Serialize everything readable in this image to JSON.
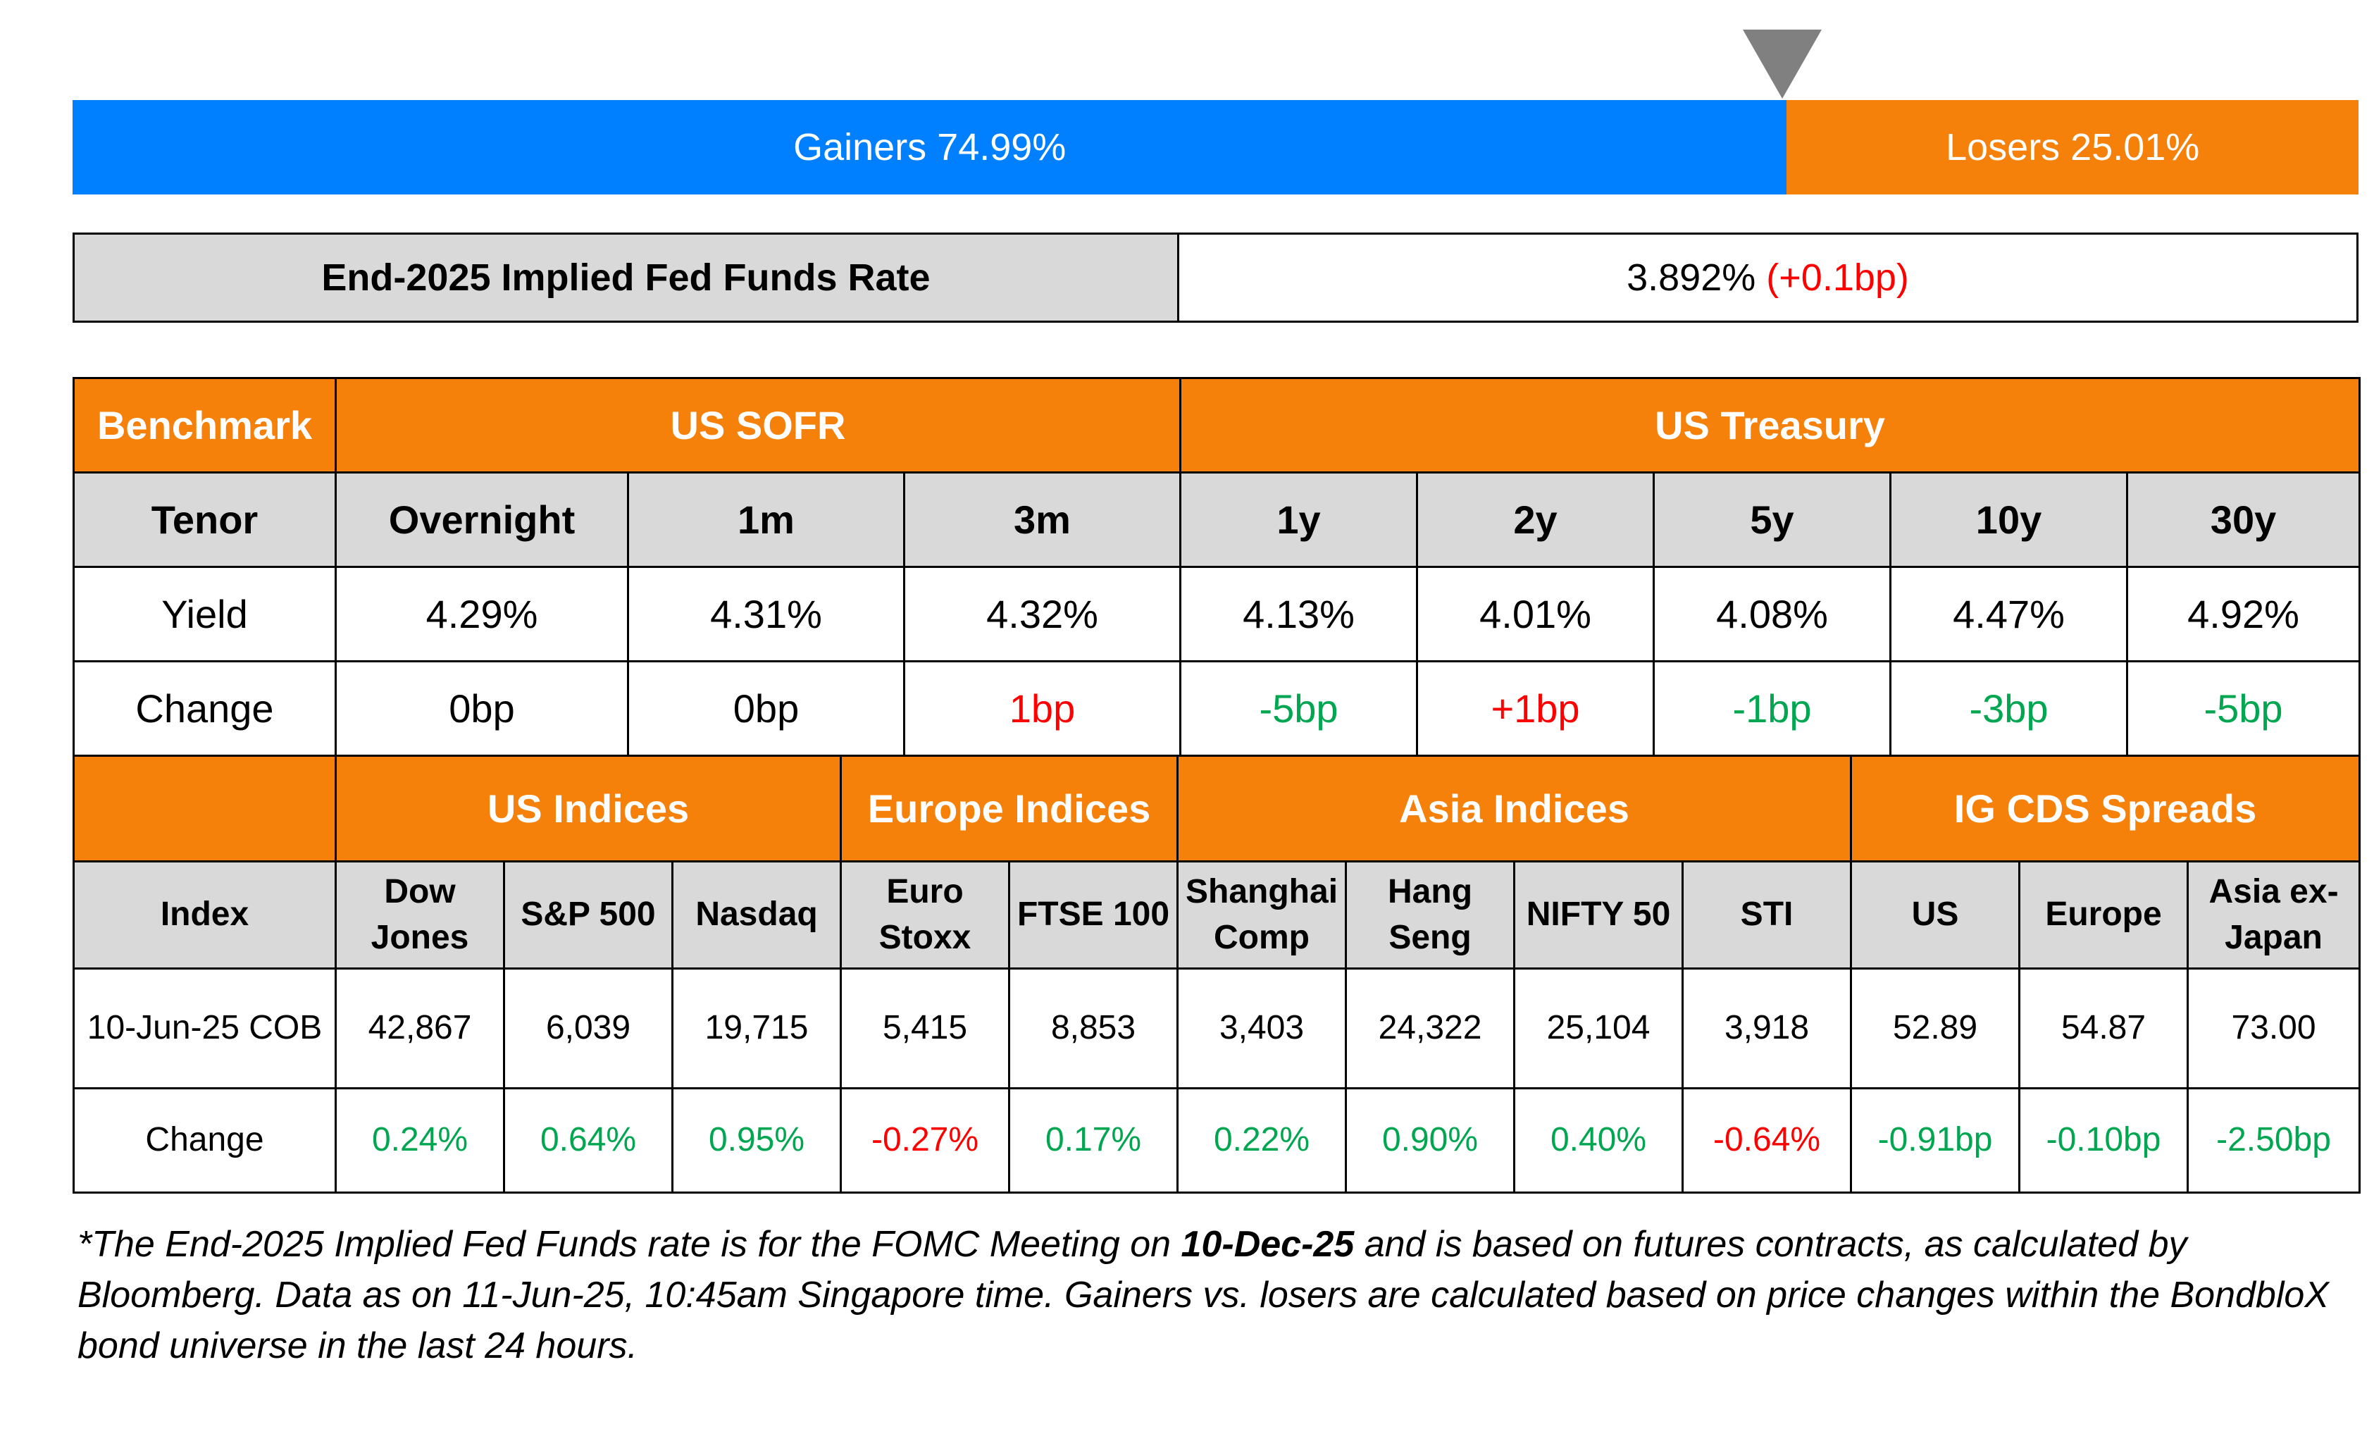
{
  "gainers_losers": {
    "gainers_label": "Gainers 74.99%",
    "losers_label": "Losers 25.01%",
    "gainers_pct": 74.99,
    "losers_pct": 25.01,
    "gainers_color": "#0080ff",
    "losers_color": "#f5800a"
  },
  "fed": {
    "label": "End-2025 Implied Fed Funds Rate",
    "value": "3.892%",
    "change": "(+0.1bp)"
  },
  "rates": {
    "benchmark_label": "Benchmark",
    "sofr_label": "US SOFR",
    "treasury_label": "US Treasury",
    "tenor_label": "Tenor",
    "yield_label": "Yield",
    "change_label": "Change",
    "tenors": [
      "Overnight",
      "1m",
      "3m",
      "1y",
      "2y",
      "5y",
      "10y",
      "30y"
    ],
    "yields": [
      "4.29%",
      "4.31%",
      "4.32%",
      "4.13%",
      "4.01%",
      "4.08%",
      "4.47%",
      "4.92%"
    ],
    "changes": [
      "0bp",
      "0bp",
      "1bp",
      "-5bp",
      "+1bp",
      "-1bp",
      "-3bp",
      "-5bp"
    ],
    "change_colors": [
      "#000000",
      "#000000",
      "#ff0000",
      "#00a650",
      "#ff0000",
      "#00a650",
      "#00a650",
      "#00a650"
    ]
  },
  "indices": {
    "groups": [
      "US Indices",
      "Europe Indices",
      "Asia Indices",
      "IG CDS Spreads"
    ],
    "index_label": "Index",
    "cob_label": "10-Jun-25 COB",
    "change_label": "Change",
    "names": [
      "Dow Jones",
      "S&P 500",
      "Nasdaq",
      "Euro Stoxx",
      "FTSE 100",
      "Shanghai Comp",
      "Hang Seng",
      "NIFTY 50",
      "STI",
      "US",
      "Europe",
      "Asia ex-Japan"
    ],
    "values": [
      "42,867",
      "6,039",
      "19,715",
      "5,415",
      "8,853",
      "3,403",
      "24,322",
      "25,104",
      "3,918",
      "52.89",
      "54.87",
      "73.00"
    ],
    "changes": [
      "0.24%",
      "0.64%",
      "0.95%",
      "-0.27%",
      "0.17%",
      "0.22%",
      "0.90%",
      "0.40%",
      "-0.64%",
      "-0.91bp",
      "-0.10bp",
      "-2.50bp"
    ],
    "change_colors": [
      "#00a650",
      "#00a650",
      "#00a650",
      "#ff0000",
      "#00a650",
      "#00a650",
      "#00a650",
      "#00a650",
      "#ff0000",
      "#00a650",
      "#00a650",
      "#00a650"
    ]
  },
  "footnote": {
    "part1": "*The End-2025 Implied Fed Funds rate is for the FOMC Meeting on ",
    "date_bold": "10-Dec-25",
    "part2": " and is based on futures contracts, as calculated by Bloomberg. Data as on 11-Jun-25, 10:45am Singapore time. Gainers vs. losers are calculated based on price changes within the BondbloX bond universe in the last 24 hours."
  }
}
